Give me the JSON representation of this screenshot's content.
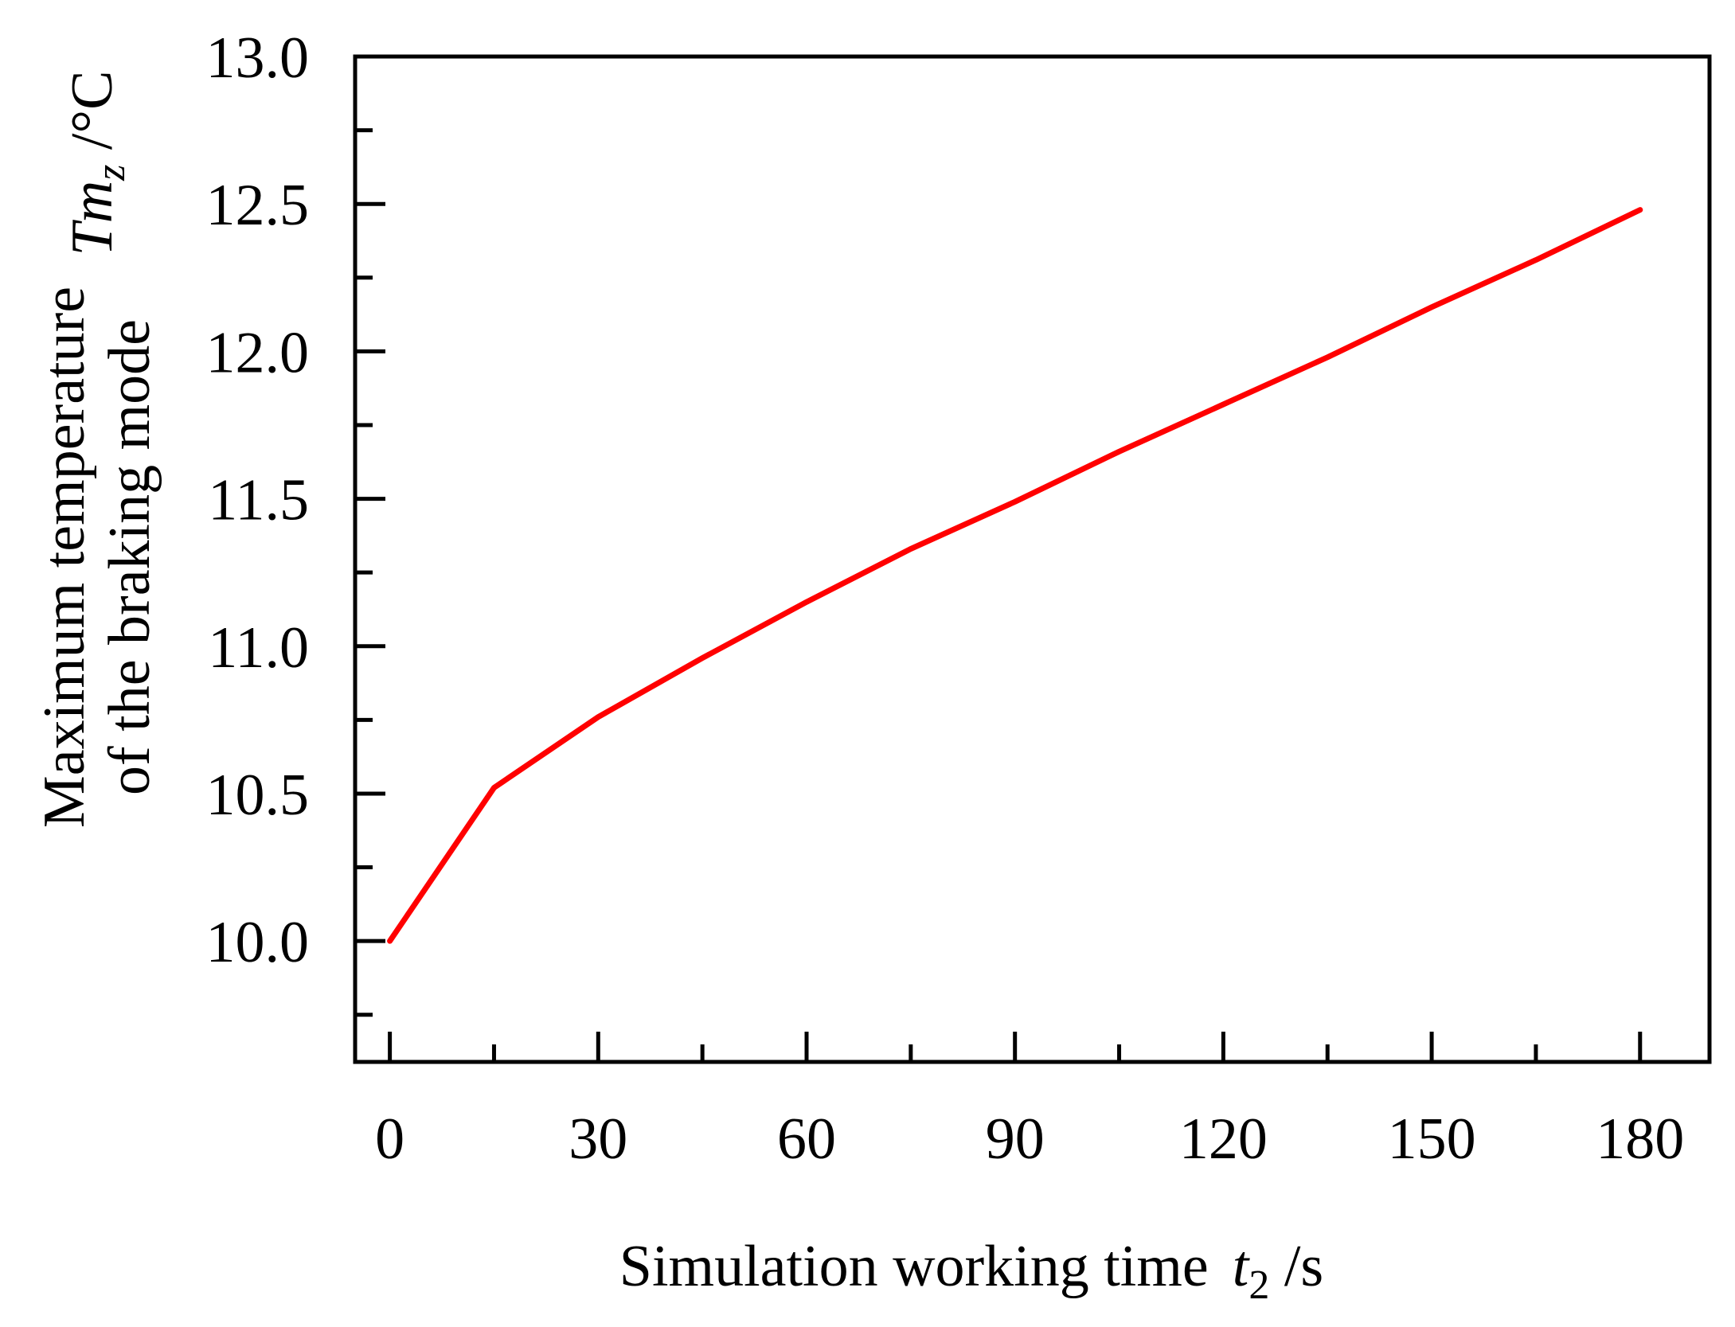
{
  "chart_data": {
    "type": "line",
    "x_axis": {
      "label_text": "Simulation working time",
      "symbol": "t",
      "symbol_subscript": "2",
      "unit": " /s",
      "range": [
        -5,
        190
      ],
      "major_ticks": [
        0,
        30,
        60,
        90,
        120,
        150,
        180
      ],
      "minor_ticks": [
        15,
        45,
        75,
        105,
        135,
        165
      ],
      "tick_labels": [
        "0",
        "30",
        "60",
        "90",
        "120",
        "150",
        "180"
      ]
    },
    "y_axis": {
      "label_line1": "Maximum temperature",
      "label_line2": "of the braking mode",
      "symbol": "Tm",
      "symbol_subscript": "z",
      "unit": " /°C",
      "range": [
        9.59,
        13.0
      ],
      "major_ticks": [
        10.0,
        10.5,
        11.0,
        11.5,
        12.0,
        12.5,
        13.0
      ],
      "minor_ticks": [
        9.75,
        10.25,
        10.75,
        11.25,
        11.75,
        12.25,
        12.75
      ],
      "tick_labels": [
        "10.0",
        "10.5",
        "11.0",
        "11.5",
        "12.0",
        "12.5",
        "13.0"
      ]
    },
    "series": [
      {
        "color": "#ff0000",
        "x": [
          0,
          15,
          30,
          45,
          60,
          75,
          90,
          105,
          120,
          135,
          150,
          165,
          180
        ],
        "y": [
          10.0,
          10.52,
          10.76,
          10.96,
          11.15,
          11.33,
          11.49,
          11.66,
          11.82,
          11.98,
          12.15,
          12.31,
          12.48
        ]
      }
    ],
    "grid": false,
    "legend": "none"
  }
}
